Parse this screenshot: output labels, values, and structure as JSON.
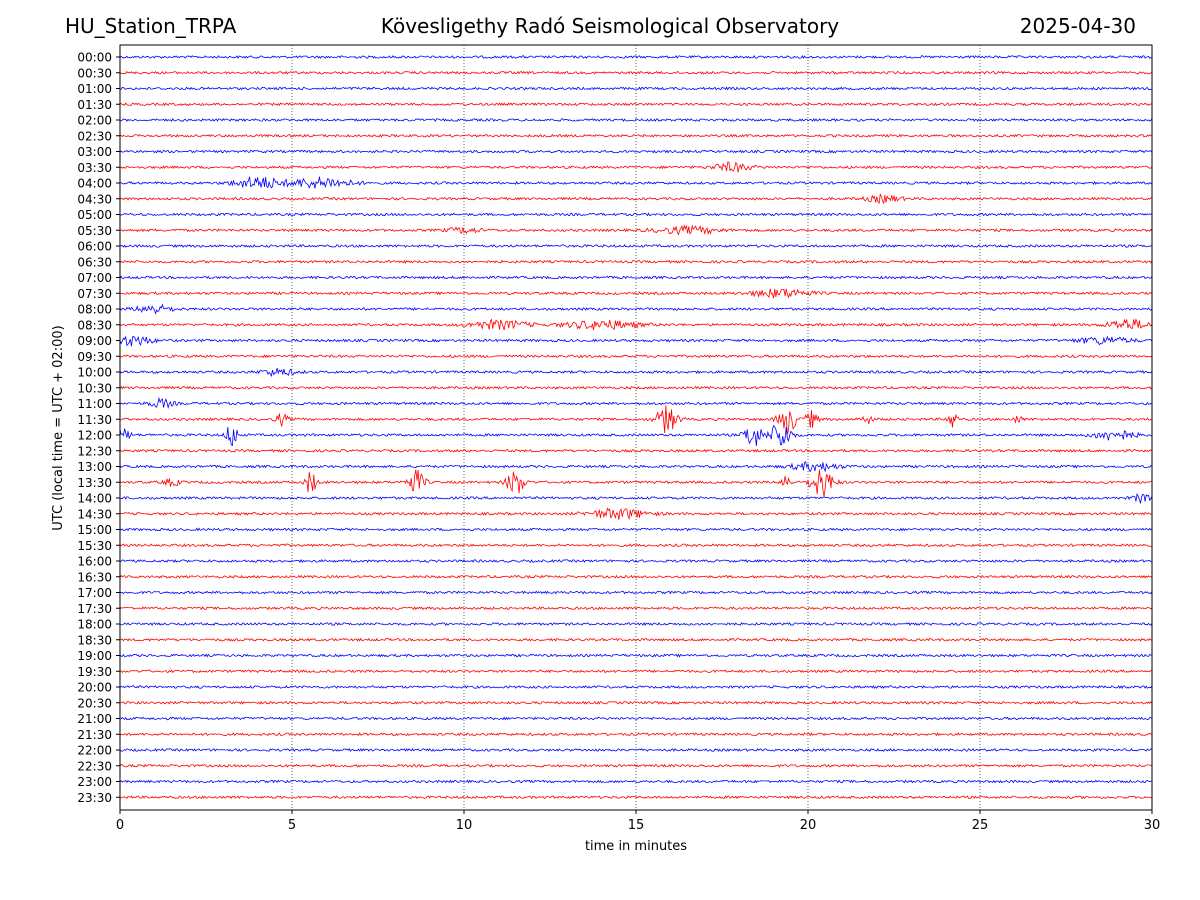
{
  "header": {
    "station": "HU_Station_TRPA",
    "observatory": "Kövesligethy Radó Seismological Observatory",
    "date": "2025-04-30"
  },
  "chart_data": {
    "type": "line",
    "title": "Kövesligethy Radó Seismological Observatory",
    "xlabel": "time in minutes",
    "ylabel": "UTC (local time = UTC + 02:00)",
    "xlim": [
      0,
      30
    ],
    "xticks": [
      "0",
      "5",
      "10",
      "15",
      "20",
      "25",
      "30"
    ],
    "grid": "vertical dotted at 5-minute intervals",
    "trace_colors": [
      "#0000ff",
      "#ff0000"
    ],
    "rows": [
      "00:00",
      "00:30",
      "01:00",
      "01:30",
      "02:00",
      "02:30",
      "03:00",
      "03:30",
      "04:00",
      "04:30",
      "05:00",
      "05:30",
      "06:00",
      "06:30",
      "07:00",
      "07:30",
      "08:00",
      "08:30",
      "09:00",
      "09:30",
      "10:00",
      "10:30",
      "11:00",
      "11:30",
      "12:00",
      "12:30",
      "13:00",
      "13:30",
      "14:00",
      "14:30",
      "15:00",
      "15:30",
      "16:00",
      "16:30",
      "17:00",
      "17:30",
      "18:00",
      "18:30",
      "19:00",
      "19:30",
      "20:00",
      "20:30",
      "21:00",
      "21:30",
      "22:00",
      "22:30",
      "23:00",
      "23:30"
    ],
    "events": [
      {
        "row": "03:30",
        "t": 17.8,
        "amp": 0.25,
        "dur": 1.3
      },
      {
        "row": "04:00",
        "t": 4.0,
        "amp": 0.35,
        "dur": 1.6
      },
      {
        "row": "04:00",
        "t": 5.8,
        "amp": 0.3,
        "dur": 2.2
      },
      {
        "row": "04:30",
        "t": 22.2,
        "amp": 0.2,
        "dur": 1.2
      },
      {
        "row": "05:30",
        "t": 10.0,
        "amp": 0.15,
        "dur": 1.2
      },
      {
        "row": "05:30",
        "t": 16.5,
        "amp": 0.2,
        "dur": 2.2
      },
      {
        "row": "07:30",
        "t": 19.2,
        "amp": 0.25,
        "dur": 2.0
      },
      {
        "row": "08:00",
        "t": 1.0,
        "amp": 0.25,
        "dur": 1.2
      },
      {
        "row": "08:30",
        "t": 11.0,
        "amp": 0.25,
        "dur": 2.0
      },
      {
        "row": "08:30",
        "t": 14.0,
        "amp": 0.25,
        "dur": 2.5
      },
      {
        "row": "08:30",
        "t": 29.3,
        "amp": 0.3,
        "dur": 1.4
      },
      {
        "row": "09:00",
        "t": 0.4,
        "amp": 0.3,
        "dur": 1.2
      },
      {
        "row": "09:00",
        "t": 28.6,
        "amp": 0.2,
        "dur": 1.8
      },
      {
        "row": "10:00",
        "t": 4.6,
        "amp": 0.2,
        "dur": 1.2
      },
      {
        "row": "11:00",
        "t": 1.2,
        "amp": 0.25,
        "dur": 0.8
      },
      {
        "row": "11:30",
        "t": 4.7,
        "amp": 0.35,
        "dur": 0.4
      },
      {
        "row": "11:30",
        "t": 15.9,
        "amp": 0.8,
        "dur": 0.7
      },
      {
        "row": "11:30",
        "t": 19.4,
        "amp": 0.85,
        "dur": 0.6
      },
      {
        "row": "11:30",
        "t": 20.1,
        "amp": 0.5,
        "dur": 0.4
      },
      {
        "row": "11:30",
        "t": 21.7,
        "amp": 0.25,
        "dur": 0.4
      },
      {
        "row": "11:30",
        "t": 24.2,
        "amp": 0.6,
        "dur": 0.3
      },
      {
        "row": "11:30",
        "t": 26.1,
        "amp": 0.2,
        "dur": 0.3
      },
      {
        "row": "12:00",
        "t": 0.1,
        "amp": 0.35,
        "dur": 0.5
      },
      {
        "row": "12:00",
        "t": 3.25,
        "amp": 0.75,
        "dur": 0.4
      },
      {
        "row": "12:00",
        "t": 18.4,
        "amp": 0.75,
        "dur": 0.6
      },
      {
        "row": "12:00",
        "t": 19.2,
        "amp": 0.85,
        "dur": 0.7
      },
      {
        "row": "12:00",
        "t": 28.9,
        "amp": 0.3,
        "dur": 1.4
      },
      {
        "row": "13:00",
        "t": 20.2,
        "amp": 0.25,
        "dur": 1.6
      },
      {
        "row": "13:30",
        "t": 1.5,
        "amp": 0.2,
        "dur": 0.6
      },
      {
        "row": "13:30",
        "t": 5.55,
        "amp": 0.75,
        "dur": 0.35
      },
      {
        "row": "13:30",
        "t": 8.6,
        "amp": 0.7,
        "dur": 0.6
      },
      {
        "row": "13:30",
        "t": 11.5,
        "amp": 0.75,
        "dur": 0.6
      },
      {
        "row": "13:30",
        "t": 19.35,
        "amp": 0.6,
        "dur": 0.3
      },
      {
        "row": "13:30",
        "t": 20.4,
        "amp": 0.85,
        "dur": 0.8
      },
      {
        "row": "14:00",
        "t": 29.7,
        "amp": 0.25,
        "dur": 0.6
      },
      {
        "row": "14:30",
        "t": 14.5,
        "amp": 0.3,
        "dur": 2.0
      }
    ]
  }
}
